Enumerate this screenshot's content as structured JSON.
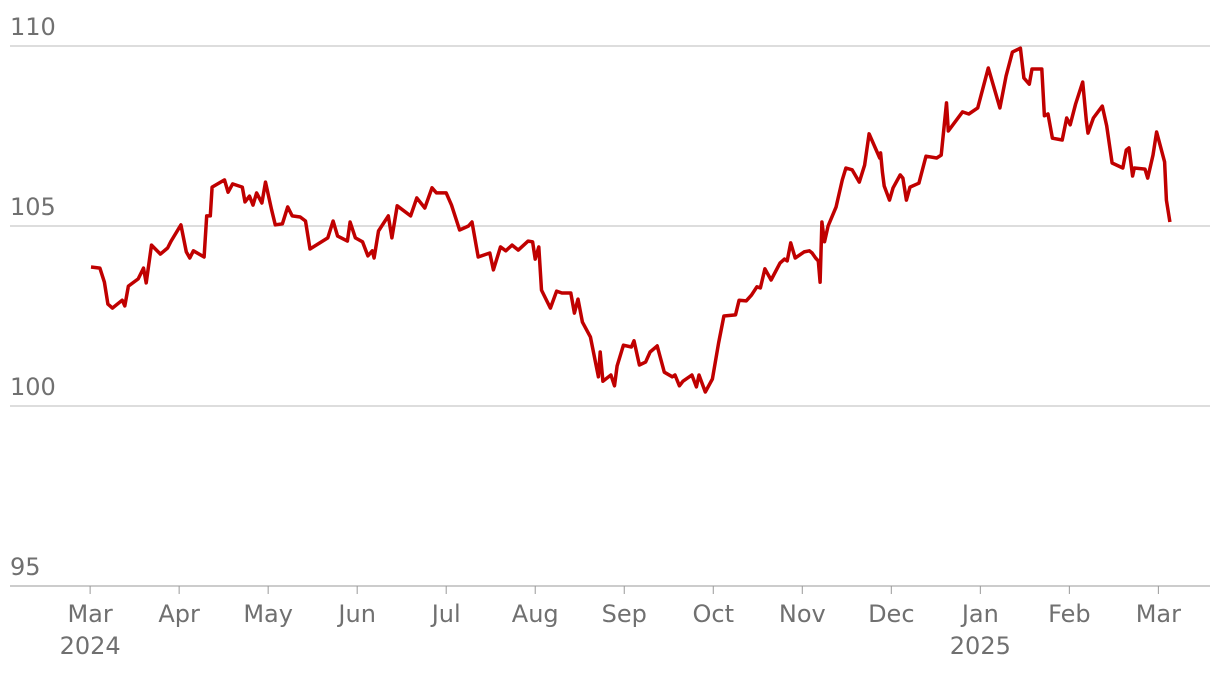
{
  "chart_data": {
    "type": "line",
    "xlim": [
      -0.9,
      12.58
    ],
    "xticks": [
      {
        "value": 0,
        "label": "Mar"
      },
      {
        "value": 1,
        "label": "Apr"
      },
      {
        "value": 2,
        "label": "May"
      },
      {
        "value": 3,
        "label": "Jun"
      },
      {
        "value": 4,
        "label": "Jul"
      },
      {
        "value": 5,
        "label": "Aug"
      },
      {
        "value": 6,
        "label": "Sep"
      },
      {
        "value": 7,
        "label": "Oct"
      },
      {
        "value": 8,
        "label": "Nov"
      },
      {
        "value": 9,
        "label": "Dec"
      },
      {
        "value": 10,
        "label": "Jan"
      },
      {
        "value": 11,
        "label": "Feb"
      },
      {
        "value": 12,
        "label": "Mar"
      }
    ],
    "year_labels": [
      {
        "value": 0,
        "label": "2024"
      },
      {
        "value": 10,
        "label": "2025"
      }
    ],
    "ylim": [
      95,
      110
    ],
    "yticks": [
      95,
      100,
      105,
      110
    ],
    "grid": true,
    "series": [
      {
        "color": "#c00000",
        "x": [
          0.01,
          0.11,
          0.16,
          0.2,
          0.25,
          0.36,
          0.39,
          0.43,
          0.54,
          0.6,
          0.63,
          0.69,
          0.79,
          0.87,
          0.91,
          1.02,
          1.08,
          1.12,
          1.16,
          1.28,
          1.31,
          1.35,
          1.37,
          1.51,
          1.55,
          1.6,
          1.71,
          1.74,
          1.79,
          1.83,
          1.87,
          1.93,
          1.97,
          2.04,
          2.08,
          2.16,
          2.22,
          2.27,
          2.36,
          2.42,
          2.47,
          2.56,
          2.67,
          2.73,
          2.78,
          2.89,
          2.92,
          2.98,
          3.06,
          3.12,
          3.17,
          3.19,
          3.24,
          3.35,
          3.39,
          3.45,
          3.6,
          3.67,
          3.76,
          3.84,
          3.89,
          4.0,
          4.06,
          4.15,
          4.25,
          4.29,
          4.36,
          4.49,
          4.53,
          4.61,
          4.67,
          4.74,
          4.81,
          4.92,
          4.97,
          5.0,
          5.04,
          5.07,
          5.17,
          5.24,
          5.3,
          5.4,
          5.44,
          5.48,
          5.53,
          5.62,
          5.71,
          5.73,
          5.76,
          5.85,
          5.89,
          5.92,
          5.99,
          6.08,
          6.11,
          6.17,
          6.24,
          6.29,
          6.37,
          6.45,
          6.54,
          6.57,
          6.62,
          6.66,
          6.76,
          6.81,
          6.84,
          6.91,
          6.99,
          7.06,
          7.12,
          7.25,
          7.29,
          7.37,
          7.43,
          7.49,
          7.53,
          7.58,
          7.65,
          7.75,
          7.8,
          7.83,
          7.87,
          7.92,
          8.02,
          8.08,
          8.11,
          8.15,
          8.18,
          8.2,
          8.22,
          8.25,
          8.29,
          8.38,
          8.45,
          8.49,
          8.56,
          8.64,
          8.7,
          8.75,
          8.83,
          8.87,
          8.88,
          8.9,
          8.92,
          8.98,
          9.02,
          9.1,
          9.13,
          9.17,
          9.21,
          9.31,
          9.39,
          9.51,
          9.56,
          9.62,
          9.64,
          9.8,
          9.87,
          9.97,
          10.09,
          10.22,
          10.29,
          10.36,
          10.45,
          10.49,
          10.55,
          10.58,
          10.69,
          10.72,
          10.76,
          10.81,
          10.92,
          10.97,
          11.01,
          11.07,
          11.15,
          11.19,
          11.21,
          11.27,
          11.37,
          11.42,
          11.48,
          11.6,
          11.64,
          11.67,
          11.71,
          11.73,
          11.85,
          11.88,
          11.94,
          11.98,
          12.07,
          12.09,
          12.13
        ],
        "values": [
          103.86,
          103.83,
          103.44,
          102.83,
          102.72,
          102.94,
          102.78,
          103.33,
          103.53,
          103.83,
          103.42,
          104.47,
          104.22,
          104.39,
          104.58,
          105.03,
          104.28,
          104.11,
          104.31,
          104.14,
          105.28,
          105.28,
          106.08,
          106.28,
          105.94,
          106.17,
          106.08,
          105.67,
          105.83,
          105.58,
          105.92,
          105.64,
          106.22,
          105.44,
          105.03,
          105.06,
          105.53,
          105.28,
          105.25,
          105.14,
          104.36,
          104.5,
          104.67,
          105.14,
          104.72,
          104.58,
          105.11,
          104.67,
          104.56,
          104.17,
          104.31,
          104.11,
          104.86,
          105.28,
          104.67,
          105.56,
          105.28,
          105.78,
          105.5,
          106.06,
          105.92,
          105.92,
          105.58,
          104.89,
          105.0,
          105.11,
          104.14,
          104.25,
          103.78,
          104.42,
          104.31,
          104.47,
          104.33,
          104.58,
          104.56,
          104.08,
          104.42,
          103.22,
          102.72,
          103.19,
          103.14,
          103.14,
          102.58,
          102.97,
          102.33,
          101.92,
          100.81,
          101.5,
          100.69,
          100.86,
          100.56,
          101.11,
          101.69,
          101.64,
          101.81,
          101.14,
          101.22,
          101.5,
          101.67,
          100.94,
          100.81,
          100.86,
          100.56,
          100.69,
          100.86,
          100.53,
          100.86,
          100.39,
          100.75,
          101.75,
          102.5,
          102.53,
          102.94,
          102.92,
          103.08,
          103.31,
          103.28,
          103.81,
          103.5,
          103.97,
          104.08,
          104.03,
          104.53,
          104.11,
          104.28,
          104.31,
          104.25,
          104.11,
          104.03,
          103.44,
          105.11,
          104.56,
          105.0,
          105.53,
          106.28,
          106.61,
          106.56,
          106.22,
          106.69,
          107.56,
          107.11,
          106.89,
          107.03,
          106.5,
          106.11,
          105.72,
          106.06,
          106.42,
          106.33,
          105.72,
          106.08,
          106.19,
          106.94,
          106.89,
          106.97,
          108.42,
          107.64,
          108.17,
          108.11,
          108.28,
          109.39,
          108.28,
          109.17,
          109.83,
          109.94,
          109.11,
          108.94,
          109.36,
          109.36,
          108.06,
          108.11,
          107.44,
          107.39,
          108.0,
          107.81,
          108.39,
          109.0,
          107.94,
          107.58,
          108.0,
          108.33,
          107.78,
          106.75,
          106.61,
          107.11,
          107.17,
          106.39,
          106.61,
          106.58,
          106.33,
          106.97,
          107.61,
          106.78,
          105.72,
          105.11
        ]
      }
    ]
  }
}
